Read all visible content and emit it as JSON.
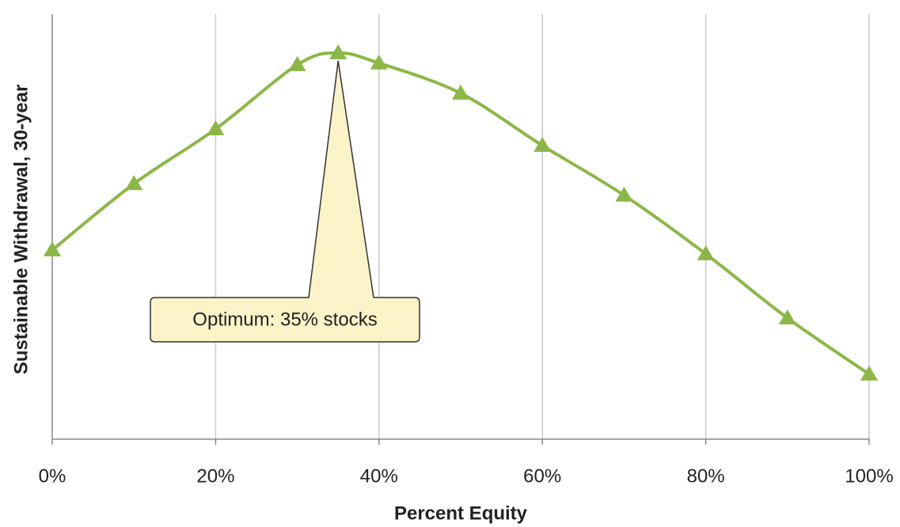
{
  "chart_data": {
    "type": "line",
    "xlabel": "Percent Equity",
    "ylabel": "Sustainable Withdrawal, 30-year",
    "annotation": "Optimum: 35% stocks",
    "x": [
      0,
      10,
      20,
      30,
      35,
      40,
      50,
      60,
      70,
      80,
      90,
      100
    ],
    "series": [
      {
        "color": "#8cb748",
        "values": [
          44.5,
          60.1,
          73.0,
          88.1,
          90.9,
          88.5,
          81.4,
          69.1,
          57.4,
          43.6,
          28.5,
          15.3
        ]
      }
    ],
    "xlim": [
      0,
      100
    ],
    "xticks": [
      {
        "value": 0,
        "label": "0%"
      },
      {
        "value": 20,
        "label": "20%"
      },
      {
        "value": 40,
        "label": "40%"
      },
      {
        "value": 60,
        "label": "60%"
      },
      {
        "value": 80,
        "label": "80%"
      },
      {
        "value": 100,
        "label": "100%"
      }
    ],
    "ylim": [
      0,
      100
    ],
    "grid": true
  }
}
